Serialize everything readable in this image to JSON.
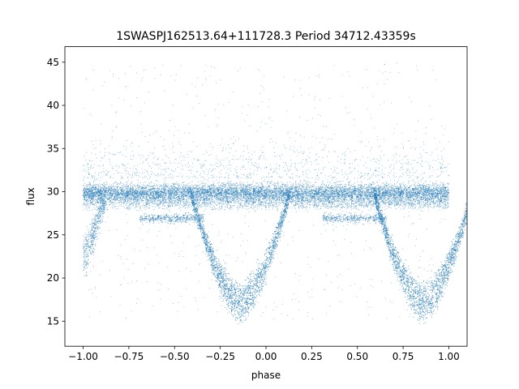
{
  "chart_data": {
    "type": "scatter",
    "title": "1SWASPJ162513.64+111728.3 Period 34712.43359s",
    "xlabel": "phase",
    "ylabel": "flux",
    "xlim": [
      -1.1,
      1.1
    ],
    "ylim": [
      12.1,
      46.8
    ],
    "xticks": [
      -1.0,
      -0.75,
      -0.5,
      -0.25,
      0.0,
      0.25,
      0.5,
      0.75,
      1.0
    ],
    "xtick_labels": [
      "−1.00",
      "−0.75",
      "−0.50",
      "−0.25",
      "0.00",
      "0.25",
      "0.50",
      "0.75",
      "1.00"
    ],
    "yticks": [
      15,
      20,
      25,
      30,
      35,
      40,
      45
    ],
    "ytick_labels": [
      "15",
      "20",
      "25",
      "30",
      "35",
      "40",
      "45"
    ],
    "grid": false,
    "point_color": "#1f77b4",
    "series": [
      {
        "description_points": "folded light curve, two cycles from phase -1 to 1",
        "baseline_flux": 29.8,
        "baseline_band": [
          28.3,
          31.3
        ],
        "secondary_level": 26.9,
        "eclipse_minimum_flux": 15.2,
        "eclipse_center_phases": [
          -0.14,
          0.86
        ],
        "eclipse_half_width": 0.27,
        "points_sample": [
          [
            -1.0,
            29.8
          ],
          [
            -0.9,
            30.1
          ],
          [
            -0.8,
            29.6
          ],
          [
            -0.7,
            29.9
          ],
          [
            -0.6,
            30.2
          ],
          [
            -0.5,
            29.7
          ],
          [
            -0.4,
            29.0
          ],
          [
            -0.3,
            22.0
          ],
          [
            -0.2,
            16.5
          ],
          [
            -0.14,
            15.2
          ],
          [
            -0.05,
            18.0
          ],
          [
            0.0,
            21.5
          ],
          [
            0.1,
            28.0
          ],
          [
            0.2,
            29.5
          ],
          [
            0.3,
            30.0
          ],
          [
            0.4,
            29.8
          ],
          [
            0.5,
            30.1
          ],
          [
            0.6,
            29.4
          ],
          [
            0.7,
            22.5
          ],
          [
            0.8,
            16.8
          ],
          [
            0.86,
            15.2
          ],
          [
            0.95,
            18.5
          ],
          [
            1.0,
            21.0
          ]
        ]
      }
    ]
  }
}
